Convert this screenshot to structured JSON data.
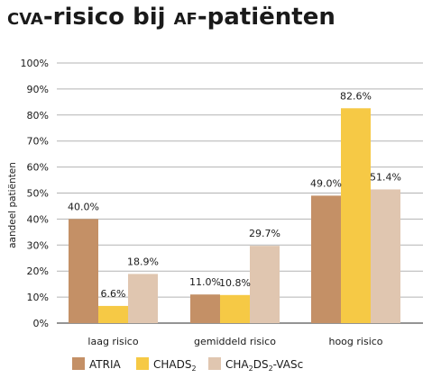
{
  "chart_data": {
    "type": "bar",
    "title_parts": [
      {
        "text": "cva",
        "style": "smallcaps"
      },
      {
        "text": "-risico bij ",
        "style": "normal"
      },
      {
        "text": "af",
        "style": "smallcaps"
      },
      {
        "text": "-patiënten",
        "style": "normal"
      }
    ],
    "xlabel": "",
    "ylabel": "aandeel patiënten",
    "ylim": [
      0,
      100
    ],
    "yticks": [
      0,
      10,
      20,
      30,
      40,
      50,
      60,
      70,
      80,
      90,
      100
    ],
    "ytick_suffix": "%",
    "grid": true,
    "legend_position": "bottom",
    "categories": [
      "laag risico",
      "gemiddeld risico",
      "hoog risico"
    ],
    "series": [
      {
        "name": "ATRIA",
        "name_parts": [
          {
            "text": "ATRIA",
            "sub": false
          }
        ],
        "color": "#c49066",
        "values": [
          40.0,
          11.0,
          49.0
        ],
        "labels": [
          "40.0%",
          "11.0%",
          "49.0%"
        ]
      },
      {
        "name": "CHADS2",
        "name_parts": [
          {
            "text": "CHADS",
            "sub": false
          },
          {
            "text": "2",
            "sub": true
          }
        ],
        "color": "#f6c945",
        "values": [
          6.6,
          10.8,
          82.6
        ],
        "labels": [
          "6.6%",
          "10.8%",
          "82.6%"
        ]
      },
      {
        "name": "CHA2DS2-VASc",
        "name_parts": [
          {
            "text": "CHA",
            "sub": false
          },
          {
            "text": "2",
            "sub": true
          },
          {
            "text": "DS",
            "sub": false
          },
          {
            "text": "2",
            "sub": true
          },
          {
            "text": "-VASc",
            "sub": false
          }
        ],
        "color": "#e0c6b0",
        "values": [
          18.9,
          29.7,
          51.4
        ],
        "labels": [
          "18.9%",
          "29.7%",
          "51.4%"
        ]
      }
    ]
  }
}
